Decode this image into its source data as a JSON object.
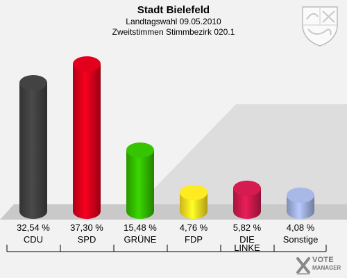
{
  "header": {
    "title": "Stadt Bielefeld",
    "line1": "Landtagswahl 09.05.2010",
    "line2": "Zweitstimmen Stimmbezirk 020.1"
  },
  "chart_data": {
    "type": "bar",
    "title": "Stadt Bielefeld",
    "categories": [
      "CDU",
      "SPD",
      "GRÜNE",
      "FDP",
      "DIE LINKE",
      "Sonstige"
    ],
    "category_lines": [
      [
        "CDU"
      ],
      [
        "SPD"
      ],
      [
        "GRÜNE"
      ],
      [
        "FDP"
      ],
      [
        "DIE",
        "LINKE"
      ],
      [
        "Sonstige"
      ]
    ],
    "values": [
      32.54,
      37.3,
      15.48,
      4.76,
      5.82,
      4.08
    ],
    "value_labels": [
      "32,54 %",
      "37,30 %",
      "15,48 %",
      "4,76 %",
      "5,82 %",
      "4,08 %"
    ],
    "colors": [
      "#404040",
      "#d9001b",
      "#33bb00",
      "#ffe020",
      "#cc1a4d",
      "#a0b0dd"
    ],
    "ylim": [
      0,
      37.3
    ],
    "grid": false,
    "legend": "none"
  },
  "branding": {
    "crest_icon": "coat-of-arms-icon",
    "logo_line1": "VOTE",
    "logo_line2": "MANAGER",
    "logo_icon": "vote-manager-x-icon"
  }
}
